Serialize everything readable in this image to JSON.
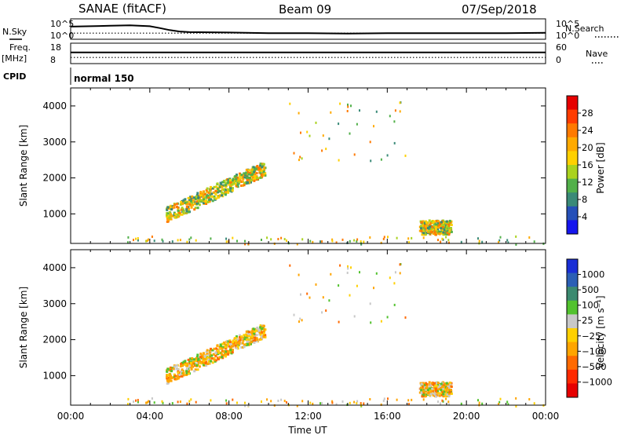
{
  "header": {
    "station": "SANAE (fitACF)",
    "beam": "Beam 09",
    "date": "07/Sep/2018"
  },
  "side_labels": {
    "nsky": "N.Sky",
    "nsearch": "N.Search",
    "freq": "Freq.",
    "mhz": "[MHz]",
    "nave": "Nave",
    "cpid": "CPID"
  },
  "cpid_value": "normal 150",
  "colors": {
    "power_scale": [
      "#1515ee",
      "#2650b8",
      "#3a8a78",
      "#52b04a",
      "#aad21e",
      "#ffd000",
      "#ffaa00",
      "#ff7a00",
      "#ff3c00",
      "#e60000"
    ],
    "velocity_scale": [
      "#1a2fd6",
      "#2b5fb5",
      "#3b8a70",
      "#52c22e",
      "#c8c8c8",
      "#ffd000",
      "#ffa500",
      "#ff6a00",
      "#ff2a00",
      "#e60000"
    ]
  },
  "chart_data": [
    {
      "type": "line",
      "name": "noise",
      "y_ticks_left": [
        "10^5",
        "10^0"
      ],
      "y_ticks_right": [
        "10^5",
        "10^0"
      ],
      "series": [
        {
          "name": "N.Sky",
          "x_hours": [
            0,
            1,
            2,
            3,
            4,
            4.5,
            5,
            5.5,
            6,
            8,
            10,
            12,
            14,
            16,
            18,
            20,
            22,
            24
          ],
          "values": [
            0.62,
            0.64,
            0.66,
            0.68,
            0.64,
            0.55,
            0.45,
            0.38,
            0.35,
            0.33,
            0.3,
            0.3,
            0.28,
            0.3,
            0.3,
            0.3,
            0.3,
            0.32
          ]
        },
        {
          "name": "N.Search",
          "x_hours": [
            0,
            24
          ],
          "values": [
            0.3,
            0.3
          ]
        }
      ]
    },
    {
      "type": "line",
      "name": "frequency",
      "y_ticks_left": [
        "18",
        "8"
      ],
      "y_ticks_right": [
        "60",
        "0"
      ],
      "series": [
        {
          "name": "Freq.",
          "x_hours": [
            0,
            24
          ],
          "values": [
            0.55,
            0.55
          ]
        },
        {
          "name": "Nave",
          "x_hours": [
            0,
            24
          ],
          "values": [
            0.3,
            0.3
          ]
        }
      ]
    },
    {
      "type": "scatter",
      "name": "power",
      "ylabel": "Slant Range [km]",
      "xlim": [
        0,
        24
      ],
      "ylim": [
        180,
        4500
      ],
      "yticks": [
        "1000",
        "2000",
        "3000",
        "4000"
      ],
      "colorbar_label": "Power [dB]",
      "colorbar_ticks": [
        "4",
        "8",
        "12",
        "16",
        "20",
        "24",
        "28"
      ],
      "regions": [
        {
          "t0": 4.8,
          "t1": 9.8,
          "r0": 1000,
          "r1": 2300,
          "slope": true
        },
        {
          "t0": 17.6,
          "t1": 19.2,
          "r0": 450,
          "r1": 850,
          "slope": false
        },
        {
          "t0": 2.0,
          "t1": 24.0,
          "r0": 180,
          "r1": 400,
          "slope": false
        }
      ]
    },
    {
      "type": "scatter",
      "name": "velocity",
      "ylabel": "Slant Range [km]",
      "xlabel": "Time UT",
      "xlim": [
        0,
        24
      ],
      "ylim": [
        180,
        4500
      ],
      "yticks": [
        "1000",
        "2000",
        "3000",
        "4000"
      ],
      "xticks": [
        "00:00",
        "04:00",
        "08:00",
        "12:00",
        "16:00",
        "20:00",
        "00:00"
      ],
      "colorbar_label": "Velocity [m s⁻¹]",
      "colorbar_ticks": [
        "1000",
        "500",
        "100",
        "25",
        "−25",
        "−100",
        "−500",
        "−1000"
      ]
    }
  ]
}
